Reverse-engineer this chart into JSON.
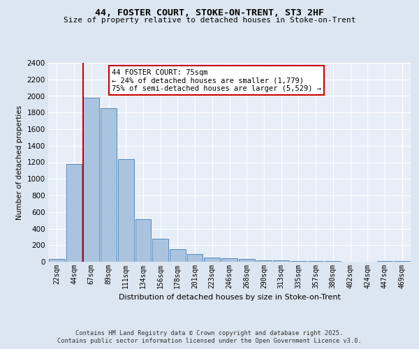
{
  "title1": "44, FOSTER COURT, STOKE-ON-TRENT, ST3 2HF",
  "title2": "Size of property relative to detached houses in Stoke-on-Trent",
  "xlabel": "Distribution of detached houses by size in Stoke-on-Trent",
  "ylabel": "Number of detached properties",
  "categories": [
    "22sqm",
    "44sqm",
    "67sqm",
    "89sqm",
    "111sqm",
    "134sqm",
    "156sqm",
    "178sqm",
    "201sqm",
    "223sqm",
    "246sqm",
    "268sqm",
    "290sqm",
    "313sqm",
    "335sqm",
    "357sqm",
    "380sqm",
    "402sqm",
    "424sqm",
    "447sqm",
    "469sqm"
  ],
  "values": [
    30,
    1175,
    1980,
    1850,
    1240,
    515,
    275,
    155,
    90,
    50,
    40,
    30,
    20,
    15,
    10,
    5,
    5,
    2,
    2,
    5,
    5
  ],
  "bar_color": "#aac4e0",
  "bar_edge_color": "#5588bb",
  "red_line_index": 2,
  "annotation_text": "44 FOSTER COURT: 75sqm\n← 24% of detached houses are smaller (1,779)\n75% of semi-detached houses are larger (5,529) →",
  "annotation_box_color": "#ffffff",
  "annotation_box_edge": "#cc0000",
  "ylim": [
    0,
    2400
  ],
  "yticks": [
    0,
    200,
    400,
    600,
    800,
    1000,
    1200,
    1400,
    1600,
    1800,
    2000,
    2200,
    2400
  ],
  "footer1": "Contains HM Land Registry data © Crown copyright and database right 2025.",
  "footer2": "Contains public sector information licensed under the Open Government Licence v3.0.",
  "bg_color": "#dce6f0",
  "plot_bg_color": "#e8eef8",
  "grid_color": "#ffffff"
}
